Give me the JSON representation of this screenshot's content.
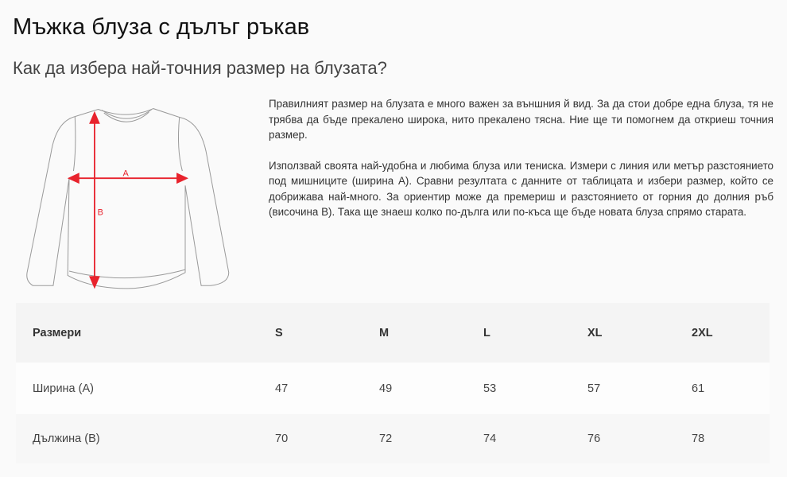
{
  "title": "Мъжка блуза с дълъг ръкав",
  "subtitle": "Как да избера най-точния размер на блузата?",
  "illustration": {
    "label_a": "A",
    "label_b": "B",
    "arrow_color": "#e8232d"
  },
  "paragraphs": [
    "Правилният размер на блузата е много важен за външния й вид. За да стои добре една блуза, тя не трябва да бъде прекалено широка, нито прекалено тясна. Ние ще ти помогнем да откриеш точния размер.",
    "Използвай своята най-удобна и любима блуза или тениска. Измери с линия или метър разстоянието под мишниците (ширина А). Сравни резултата с данните от таблицата и избери размер, който се добрижава най-много. За ориентир може да премериш и разстоянието от горния до долния ръб (височина В). Така ще знаеш колко по-дълга или по-къса ще бъде новата блуза спрямо старата."
  ],
  "table": {
    "headers": [
      "Размери",
      "S",
      "M",
      "L",
      "XL",
      "2XL"
    ],
    "rows": [
      [
        "Ширина (A)",
        "47",
        "49",
        "53",
        "57",
        "61"
      ],
      [
        "Дължина (B)",
        "70",
        "72",
        "74",
        "76",
        "78"
      ]
    ]
  }
}
